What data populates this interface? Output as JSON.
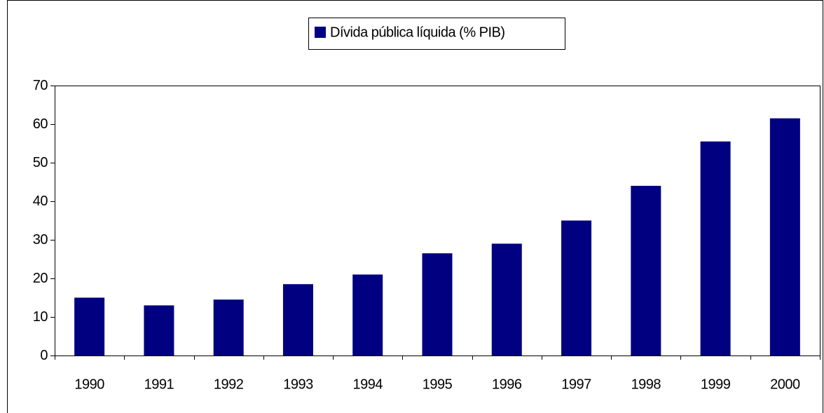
{
  "chart_data": {
    "type": "bar",
    "categories": [
      "1990",
      "1991",
      "1992",
      "1993",
      "1994",
      "1995",
      "1996",
      "1997",
      "1998",
      "1999",
      "2000"
    ],
    "series": [
      {
        "name": "Dívida pública líquida (% PIB)",
        "color": "#000080",
        "values": [
          15,
          13,
          14.5,
          18.5,
          21,
          26.5,
          29,
          35,
          44,
          55.5,
          61.5
        ]
      }
    ],
    "ylim": [
      0,
      70
    ],
    "yticks": [
      0,
      10,
      20,
      30,
      40,
      50,
      60,
      70
    ],
    "legend": "top"
  }
}
